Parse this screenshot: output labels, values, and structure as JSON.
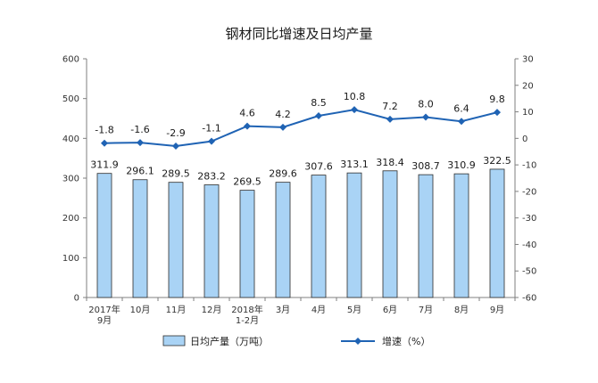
{
  "chart_data": {
    "type": "bar",
    "title": "钢材同比增速及日均产量",
    "categories": [
      [
        "2017年",
        "9月"
      ],
      [
        "10月"
      ],
      [
        "11月"
      ],
      [
        "12月"
      ],
      [
        "2018年",
        "1-2月"
      ],
      [
        "3月"
      ],
      [
        "4月"
      ],
      [
        "5月"
      ],
      [
        "6月"
      ],
      [
        "7月"
      ],
      [
        "8月"
      ],
      [
        "9月"
      ]
    ],
    "series": [
      {
        "name": "日均产量（万吨）",
        "type": "bar",
        "axis": "left",
        "color": "#a9d3f5",
        "values": [
          311.9,
          296.1,
          289.5,
          283.2,
          269.5,
          289.6,
          307.6,
          313.1,
          318.4,
          308.7,
          310.9,
          322.5
        ],
        "labels": [
          "311.9",
          "296.1",
          "289.5",
          "283.2",
          "269.5",
          "289.6",
          "307.6",
          "313.1",
          "318.4",
          "308.7",
          "310.9",
          "322.5"
        ]
      },
      {
        "name": "增速（%）",
        "type": "line",
        "axis": "right",
        "color": "#1f63b4",
        "values": [
          -1.8,
          -1.6,
          -2.9,
          -1.1,
          4.6,
          4.2,
          8.5,
          10.8,
          7.2,
          8.0,
          6.4,
          9.8
        ],
        "labels": [
          "-1.8",
          "-1.6",
          "-2.9",
          "-1.1",
          "4.6",
          "4.2",
          "8.5",
          "10.8",
          "7.2",
          "8.0",
          "6.4",
          "9.8"
        ]
      }
    ],
    "y_left": {
      "range": [
        0,
        600
      ],
      "ticks": [
        0,
        100,
        200,
        300,
        400,
        500,
        600
      ]
    },
    "y_right": {
      "range": [
        -60,
        30
      ],
      "ticks": [
        -60,
        -50,
        -40,
        -30,
        -20,
        -10,
        0,
        10,
        20,
        30
      ]
    },
    "grid": false,
    "legend": "bottom"
  }
}
